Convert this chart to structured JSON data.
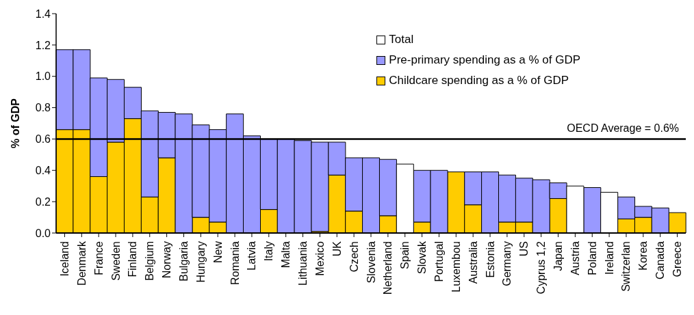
{
  "chart_data": {
    "type": "bar",
    "stacked": true,
    "ylabel": "% of GDP",
    "categories": [
      "Iceland",
      "Denmark",
      "France",
      "Sweden",
      "Finland",
      "Belgium",
      "Norway",
      "Bulgaria",
      "Hungary",
      "New",
      "Romania",
      "Latvia",
      "Italy",
      "Malta",
      "Lithuania",
      "Mexico",
      "UK",
      "Czech",
      "Slovenia",
      "Netherland",
      "Spain",
      "Slovak",
      "Portugal",
      "Luxembou",
      "Australia",
      "Estonia",
      "Germany",
      "US",
      "Cyprus 1,2",
      "Japan",
      "Austria",
      "Poland",
      "Ireland",
      "Switzerlan",
      "Korea",
      "Canada",
      "Greece"
    ],
    "series": [
      {
        "name": "Childcare spending as a % of GDP",
        "color": "#ffcc00",
        "values": [
          0.66,
          0.66,
          0.36,
          0.58,
          0.73,
          0.23,
          0.48,
          null,
          0.1,
          0.07,
          null,
          null,
          0.15,
          null,
          null,
          0.01,
          0.37,
          0.14,
          null,
          0.11,
          null,
          0.07,
          null,
          0.39,
          0.18,
          null,
          0.07,
          0.07,
          null,
          0.22,
          null,
          null,
          null,
          0.09,
          0.1,
          null,
          0.13
        ]
      },
      {
        "name": "Pre-primary spending as a % of GDP",
        "color": "#9999ff",
        "values": [
          0.51,
          0.51,
          0.63,
          0.4,
          0.2,
          0.55,
          0.29,
          0.76,
          0.59,
          0.59,
          0.76,
          0.62,
          0.45,
          0.6,
          0.59,
          0.57,
          0.21,
          0.34,
          0.48,
          0.36,
          null,
          0.33,
          0.4,
          null,
          0.21,
          0.39,
          0.3,
          0.28,
          0.34,
          0.1,
          null,
          0.29,
          null,
          0.14,
          0.07,
          0.16,
          null
        ]
      },
      {
        "name": "Total",
        "color": "#ffffff",
        "values": [
          null,
          null,
          null,
          null,
          null,
          null,
          null,
          null,
          null,
          null,
          null,
          null,
          null,
          null,
          null,
          null,
          null,
          null,
          null,
          null,
          0.44,
          null,
          null,
          null,
          null,
          null,
          null,
          null,
          null,
          null,
          0.3,
          null,
          0.26,
          null,
          null,
          null,
          null
        ]
      }
    ],
    "ylim": [
      0,
      1.4
    ],
    "yticks": [
      {
        "value": 0,
        "label": "0.0"
      },
      0.2,
      0.4,
      0.6,
      0.8,
      {
        "value": 1,
        "label": "1.0"
      },
      1.2,
      1.4
    ],
    "ref_lines": [
      {
        "axis": "y",
        "value": 0.6,
        "label": "OECD Average = 0.6%",
        "color": "#000000"
      }
    ],
    "legend": "top right"
  }
}
